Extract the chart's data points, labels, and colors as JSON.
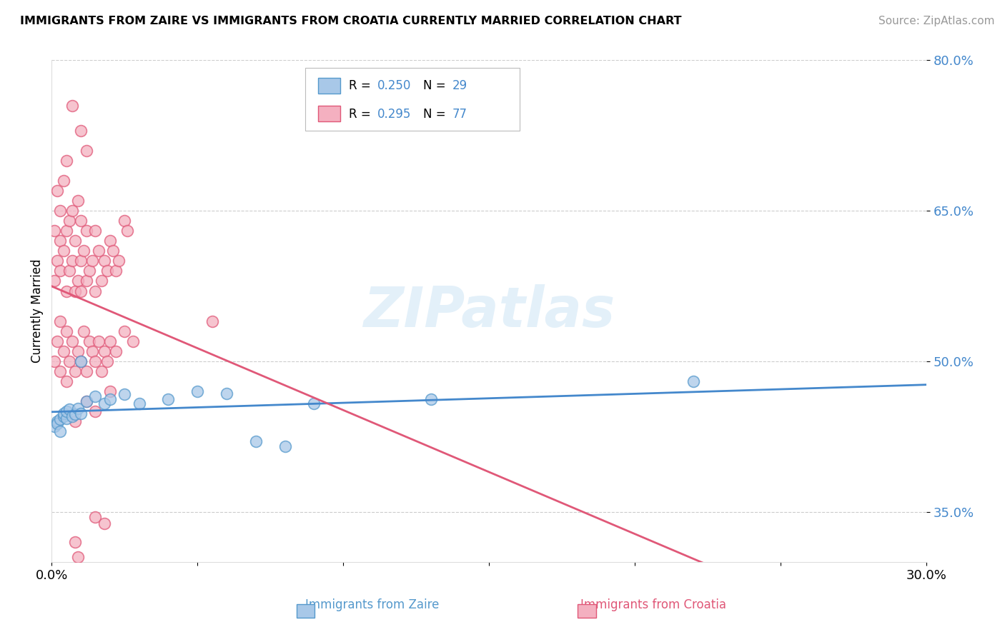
{
  "title": "IMMIGRANTS FROM ZAIRE VS IMMIGRANTS FROM CROATIA CURRENTLY MARRIED CORRELATION CHART",
  "source": "Source: ZipAtlas.com",
  "xlabel_zaire": "Immigrants from Zaire",
  "xlabel_croatia": "Immigrants from Croatia",
  "ylabel": "Currently Married",
  "xlim": [
    0.0,
    0.3
  ],
  "ylim": [
    0.3,
    0.8
  ],
  "ytick_vals": [
    0.35,
    0.5,
    0.65,
    0.8
  ],
  "ytick_labels": [
    "35.0%",
    "50.0%",
    "65.0%",
    "80.0%"
  ],
  "xtick_vals": [
    0.0,
    0.05,
    0.1,
    0.15,
    0.2,
    0.25,
    0.3
  ],
  "xtick_labels": [
    "0.0%",
    "",
    "",
    "",
    "",
    "",
    "30.0%"
  ],
  "zaire_fill": "#a8c8e8",
  "zaire_edge": "#5599cc",
  "croatia_fill": "#f4b0c0",
  "croatia_edge": "#e05878",
  "zaire_line_color": "#4488cc",
  "croatia_line_color": "#e05878",
  "zaire_R": "0.250",
  "zaire_N": "29",
  "croatia_R": "0.295",
  "croatia_N": "77",
  "watermark": "ZIPatlas",
  "legend_color_R_N": "#4488cc",
  "background_color": "#ffffff",
  "grid_color": "#cccccc",
  "zaire_x": [
    0.001,
    0.002,
    0.002,
    0.003,
    0.003,
    0.004,
    0.004,
    0.005,
    0.005,
    0.006,
    0.007,
    0.008,
    0.009,
    0.01,
    0.01,
    0.012,
    0.015,
    0.018,
    0.02,
    0.025,
    0.03,
    0.04,
    0.05,
    0.06,
    0.07,
    0.08,
    0.09,
    0.13,
    0.22
  ],
  "zaire_y": [
    0.435,
    0.44,
    0.438,
    0.442,
    0.43,
    0.445,
    0.448,
    0.443,
    0.45,
    0.452,
    0.445,
    0.447,
    0.453,
    0.448,
    0.5,
    0.46,
    0.465,
    0.458,
    0.462,
    0.467,
    0.458,
    0.462,
    0.47,
    0.468,
    0.42,
    0.415,
    0.458,
    0.462,
    0.48
  ],
  "croatia_x": [
    0.001,
    0.001,
    0.002,
    0.002,
    0.003,
    0.003,
    0.003,
    0.004,
    0.004,
    0.005,
    0.005,
    0.005,
    0.006,
    0.006,
    0.007,
    0.007,
    0.008,
    0.008,
    0.009,
    0.009,
    0.01,
    0.01,
    0.01,
    0.011,
    0.012,
    0.012,
    0.013,
    0.014,
    0.015,
    0.015,
    0.016,
    0.017,
    0.018,
    0.019,
    0.02,
    0.021,
    0.022,
    0.023,
    0.025,
    0.026,
    0.001,
    0.002,
    0.003,
    0.003,
    0.004,
    0.005,
    0.005,
    0.006,
    0.007,
    0.008,
    0.009,
    0.01,
    0.011,
    0.012,
    0.013,
    0.014,
    0.015,
    0.016,
    0.017,
    0.018,
    0.019,
    0.02,
    0.022,
    0.025,
    0.028,
    0.008,
    0.012,
    0.015,
    0.02,
    0.055,
    0.008,
    0.009,
    0.015,
    0.018,
    0.007,
    0.01,
    0.012
  ],
  "croatia_y": [
    0.58,
    0.63,
    0.6,
    0.67,
    0.62,
    0.59,
    0.65,
    0.61,
    0.68,
    0.57,
    0.63,
    0.7,
    0.59,
    0.64,
    0.6,
    0.65,
    0.57,
    0.62,
    0.58,
    0.66,
    0.6,
    0.64,
    0.57,
    0.61,
    0.58,
    0.63,
    0.59,
    0.6,
    0.57,
    0.63,
    0.61,
    0.58,
    0.6,
    0.59,
    0.62,
    0.61,
    0.59,
    0.6,
    0.64,
    0.63,
    0.5,
    0.52,
    0.49,
    0.54,
    0.51,
    0.48,
    0.53,
    0.5,
    0.52,
    0.49,
    0.51,
    0.5,
    0.53,
    0.49,
    0.52,
    0.51,
    0.5,
    0.52,
    0.49,
    0.51,
    0.5,
    0.52,
    0.51,
    0.53,
    0.52,
    0.44,
    0.46,
    0.45,
    0.47,
    0.54,
    0.32,
    0.305,
    0.345,
    0.338,
    0.755,
    0.73,
    0.71
  ]
}
